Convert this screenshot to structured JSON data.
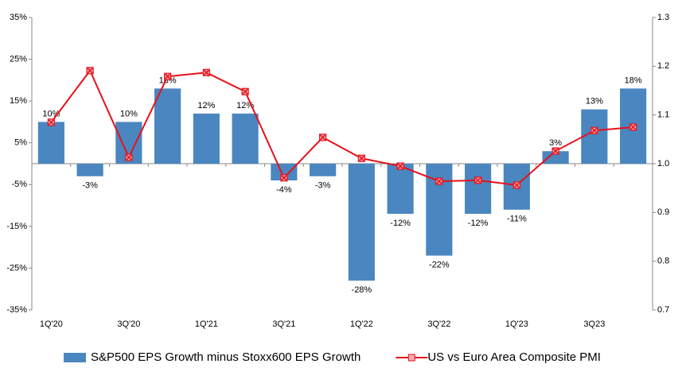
{
  "chart_data": {
    "type": "bar",
    "categories": [
      "1Q'20",
      null,
      "3Q'20",
      null,
      "1Q'21",
      null,
      "3Q'21",
      null,
      "1Q'22",
      null,
      "3Q'22",
      null,
      "1Q'23",
      null,
      "3Q23",
      null
    ],
    "series": [
      {
        "name": "S&P500 EPS Growth minus Stoxx600 EPS Growth",
        "type": "bar",
        "color": "#4a86c0",
        "values": [
          10,
          -3,
          10,
          18,
          12,
          12,
          -4,
          -3,
          -28,
          -12,
          -22,
          -12,
          -11,
          3,
          13,
          18
        ],
        "value_labels": [
          "10%",
          "-3%",
          "10%",
          "18%",
          "12%",
          "12%",
          "-4%",
          "-3%",
          "-28%",
          "-12%",
          "-22%",
          "-12%",
          "-11%",
          "3%",
          "13%",
          "18%"
        ]
      },
      {
        "name": "US vs Euro Area Composite PMI",
        "type": "line",
        "axis": "y2",
        "color": "#e8101a",
        "marker_color": "#f6a8b0",
        "values": [
          1.085,
          1.191,
          1.013,
          1.179,
          1.187,
          1.148,
          0.971,
          1.054,
          1.011,
          0.995,
          0.964,
          0.966,
          0.956,
          1.026,
          1.068,
          1.075
        ]
      }
    ],
    "ylim": [
      -35,
      35
    ],
    "yticks": [
      {
        "value": -35,
        "label": "-35%"
      },
      {
        "value": -25,
        "label": "-25%"
      },
      {
        "value": -15,
        "label": "-15%"
      },
      {
        "value": -5,
        "label": "-5%"
      },
      {
        "value": 5,
        "label": "5%"
      },
      {
        "value": 15,
        "label": "15%"
      },
      {
        "value": 25,
        "label": "25%"
      },
      {
        "value": 35,
        "label": "35%"
      }
    ],
    "y2lim": [
      0.7,
      1.3
    ],
    "y2ticks": [
      0.7,
      0.8,
      0.9,
      {
        "value": 1,
        "label": "1.0"
      },
      1.1,
      1.2,
      1.3
    ],
    "legend": "bottom"
  }
}
